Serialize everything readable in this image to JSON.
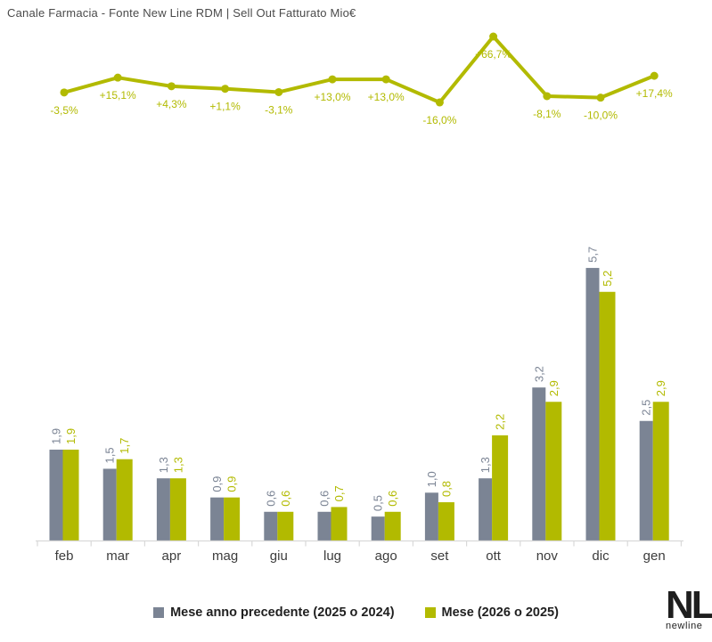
{
  "title": "Canale Farmacia - Fonte New Line RDM | Sell Out Fatturato Mio€",
  "colors": {
    "accent_olive": "#B2BA00",
    "series_gray": "#7B8494",
    "axis_line": "#D9D9D9",
    "title_text": "#4A4A4A",
    "month_label": "#3C3C3C",
    "legend_text": "#1F1F1F"
  },
  "chart_data": [
    {
      "type": "line",
      "name": "variazione-percentuale-mensile",
      "categories": [
        "feb",
        "mar",
        "apr",
        "mag",
        "giu",
        "lug",
        "ago",
        "set",
        "ott",
        "nov",
        "dic",
        "gen"
      ],
      "values": [
        -3.5,
        15.1,
        4.3,
        1.1,
        -3.1,
        13.0,
        13.0,
        -16.0,
        66.7,
        -8.1,
        -10.0,
        17.4
      ],
      "point_labels": [
        "-3,5%",
        "+15,1%",
        "+4,3%",
        "+1,1%",
        "-3,1%",
        "+13,0%",
        "+13,0%",
        "-16,0%",
        "+66,7%",
        "-8,1%",
        "-10,0%",
        "+17,4%"
      ],
      "ylim": [
        -30,
        80
      ],
      "grid": false,
      "legend_position": "none",
      "line_color": "#B2BA00"
    },
    {
      "type": "bar",
      "name": "sell-out-fatturato-mensile",
      "categories": [
        "feb",
        "mar",
        "apr",
        "mag",
        "giu",
        "lug",
        "ago",
        "set",
        "ott",
        "nov",
        "dic",
        "gen"
      ],
      "series": [
        {
          "name": "Mese anno precedente (2025 o 2024)",
          "color": "#7B8494",
          "values": [
            1.9,
            1.5,
            1.3,
            0.9,
            0.6,
            0.6,
            0.5,
            1.0,
            1.3,
            3.2,
            5.7,
            2.5
          ],
          "point_labels": [
            "1,9",
            "1,5",
            "1,3",
            "0,9",
            "0,6",
            "0,6",
            "0,5",
            "1,0",
            "1,3",
            "3,2",
            "5,7",
            "2,5"
          ]
        },
        {
          "name": "Mese (2026 o 2025)",
          "color": "#B2BA00",
          "values": [
            1.9,
            1.7,
            1.3,
            0.9,
            0.6,
            0.7,
            0.6,
            0.8,
            2.2,
            2.9,
            5.2,
            2.9
          ],
          "point_labels": [
            "1,9",
            "1,7",
            "1,3",
            "0,9",
            "0,6",
            "0,7",
            "0,6",
            "0,8",
            "2,2",
            "2,9",
            "5,2",
            "2,9"
          ]
        }
      ],
      "ylim": [
        0,
        7
      ],
      "grid": false,
      "legend_position": "bottom"
    }
  ],
  "legend": {
    "items": [
      {
        "label": "Mese anno precedente (2025 o 2024)",
        "color": "#7B8494"
      },
      {
        "label": "Mese (2026 o 2025)",
        "color": "#B2BA00"
      }
    ]
  },
  "logo": {
    "wordmark": "NL",
    "subtext": "newline"
  }
}
